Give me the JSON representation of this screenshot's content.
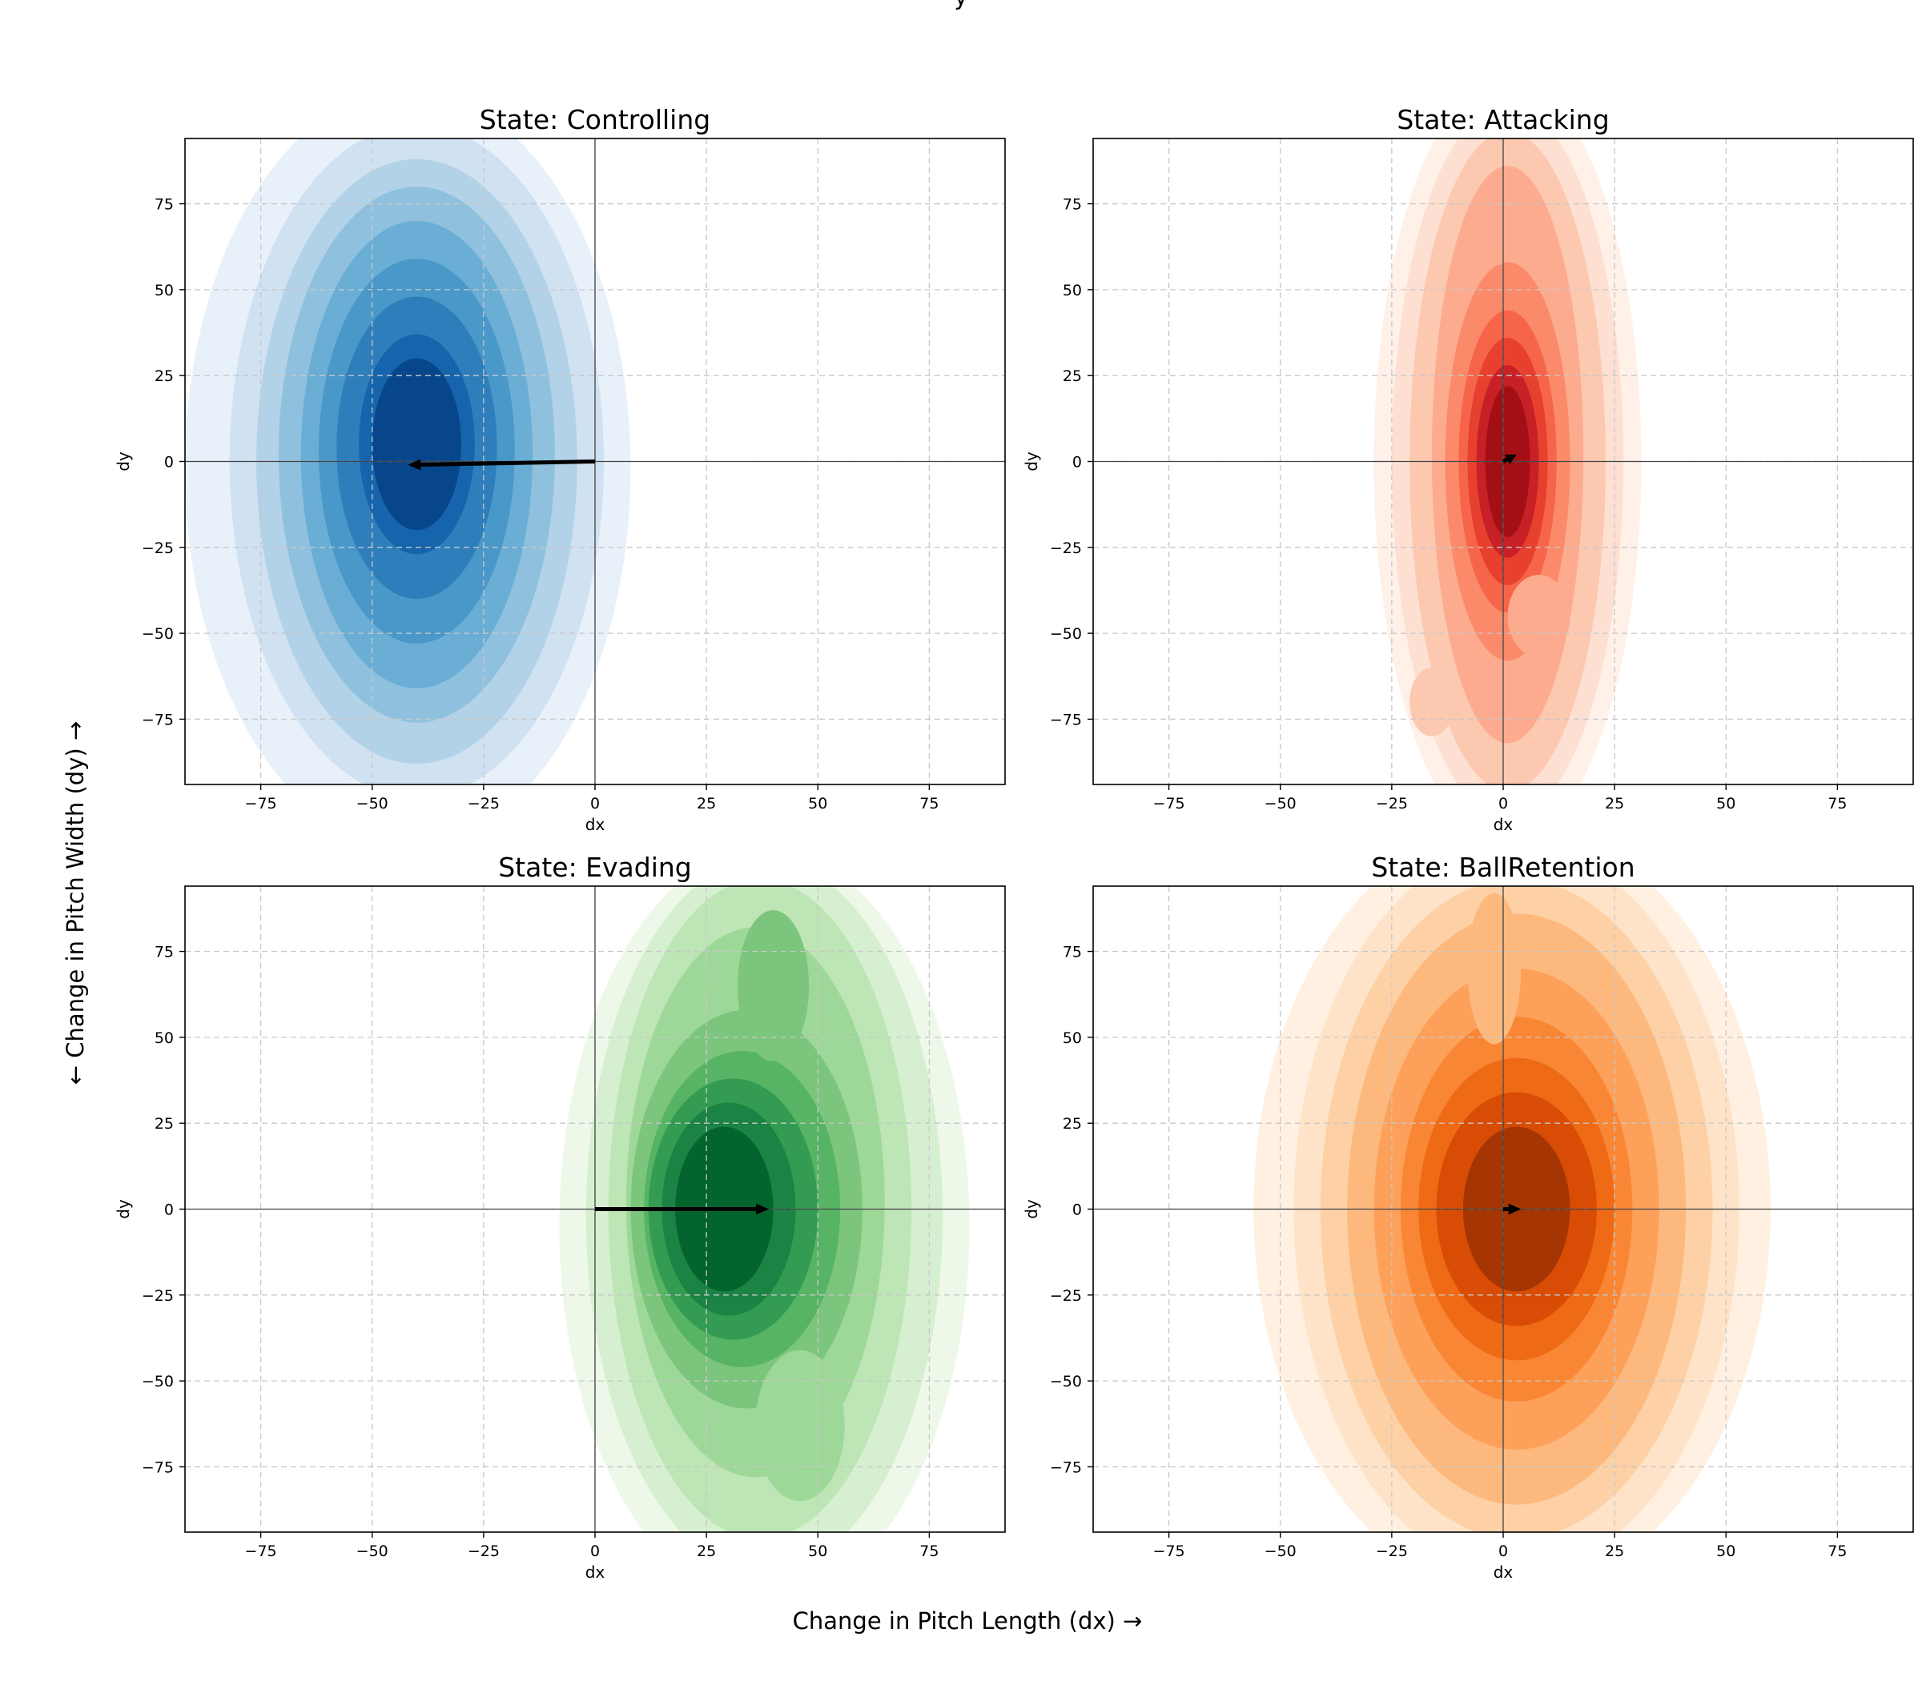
{
  "figure": {
    "suptitle_visible": "y",
    "shared_xlabel": "Change in Pitch Length (dx) →",
    "shared_ylabel": "← Change in Pitch Width (dy) →"
  },
  "chart_data": [
    {
      "type": "kde-contour",
      "title": "State: Controlling",
      "xlabel": "dx",
      "ylabel": "dy",
      "xlim": [
        -92,
        92
      ],
      "ylim": [
        -94,
        94
      ],
      "xticks": [
        -75,
        -50,
        -25,
        0,
        25,
        50,
        75
      ],
      "yticks": [
        -75,
        -50,
        -25,
        0,
        25,
        50,
        75
      ],
      "xtick_labels": [
        "−75",
        "−50",
        "−25",
        "0",
        "25",
        "50",
        "75"
      ],
      "ytick_labels": [
        "−75",
        "−50",
        "−25",
        "0",
        "25",
        "50",
        "75"
      ],
      "grid": true,
      "colormap": [
        "#e8f1fa",
        "#d0e1f2",
        "#b2d2e8",
        "#8fc1de",
        "#6aaed6",
        "#4a98c9",
        "#2e7ebc",
        "#1664ab",
        "#08468b"
      ],
      "density_peak": {
        "dx": -40,
        "dy": 3
      },
      "mean_vector": {
        "dx": -42,
        "dy": -1
      }
    },
    {
      "type": "kde-contour",
      "title": "State: Attacking",
      "xlabel": "dx",
      "ylabel": "dy",
      "xlim": [
        -92,
        92
      ],
      "ylim": [
        -94,
        94
      ],
      "xticks": [
        -75,
        -50,
        -25,
        0,
        25,
        50,
        75
      ],
      "yticks": [
        -75,
        -50,
        -25,
        0,
        25,
        50,
        75
      ],
      "xtick_labels": [
        "−75",
        "−50",
        "−25",
        "0",
        "25",
        "50",
        "75"
      ],
      "ytick_labels": [
        "−75",
        "−50",
        "−25",
        "0",
        "25",
        "50",
        "75"
      ],
      "grid": true,
      "colormap": [
        "#fff0e8",
        "#fde0d2",
        "#fcc8b0",
        "#fcab8f",
        "#fb8a6a",
        "#f6654a",
        "#e8402e",
        "#c72027",
        "#a30f15"
      ],
      "density_peak": {
        "dx": 1,
        "dy": 0
      },
      "mean_vector": {
        "dx": 3,
        "dy": 2
      }
    },
    {
      "type": "kde-contour",
      "title": "State: Evading",
      "xlabel": "dx",
      "ylabel": "dy",
      "xlim": [
        -92,
        92
      ],
      "ylim": [
        -94,
        94
      ],
      "xticks": [
        -75,
        -50,
        -25,
        0,
        25,
        50,
        75
      ],
      "yticks": [
        -75,
        -50,
        -25,
        0,
        25,
        50,
        75
      ],
      "xtick_labels": [
        "−75",
        "−50",
        "−25",
        "0",
        "25",
        "50",
        "75"
      ],
      "ytick_labels": [
        "−75",
        "−50",
        "−25",
        "0",
        "25",
        "50",
        "75"
      ],
      "grid": true,
      "colormap": [
        "#edf8e9",
        "#d6efd0",
        "#bde5b5",
        "#9ed898",
        "#7cc57d",
        "#56b464",
        "#339c52",
        "#1b8343",
        "#03652d"
      ],
      "density_peak": {
        "dx": 30,
        "dy": 0
      },
      "mean_vector": {
        "dx": 39,
        "dy": 0
      }
    },
    {
      "type": "kde-contour",
      "title": "State: BallRetention",
      "xlabel": "dx",
      "ylabel": "dy",
      "xlim": [
        -92,
        92
      ],
      "ylim": [
        -94,
        94
      ],
      "xticks": [
        -75,
        -50,
        -25,
        0,
        25,
        50,
        75
      ],
      "yticks": [
        -75,
        -50,
        -25,
        0,
        25,
        50,
        75
      ],
      "xtick_labels": [
        "−75",
        "−50",
        "−25",
        "0",
        "25",
        "50",
        "75"
      ],
      "ytick_labels": [
        "−75",
        "−50",
        "−25",
        "0",
        "25",
        "50",
        "75"
      ],
      "grid": true,
      "colormap": [
        "#fff0e1",
        "#fee3c8",
        "#fdd1a5",
        "#fdb97d",
        "#fda05a",
        "#f98634",
        "#ef6a15",
        "#d84c05",
        "#a53603"
      ],
      "density_peak": {
        "dx": 2,
        "dy": 0
      },
      "mean_vector": {
        "dx": 4,
        "dy": 0
      }
    }
  ]
}
